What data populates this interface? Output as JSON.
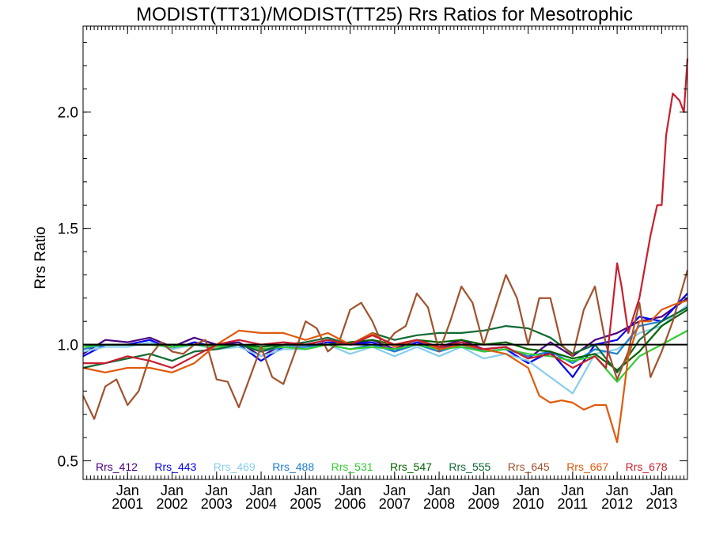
{
  "chart_data": {
    "type": "line",
    "title": "MODIST(TT31)/MODIST(TT25)  Rrs Ratios for Mesotrophic",
    "xlabel": "",
    "ylabel": "Rrs Ratio",
    "xlim": [
      2000.0,
      2013.58
    ],
    "ylim": [
      0.42,
      2.37
    ],
    "yticks": [
      0.5,
      1.0,
      1.5,
      2.0
    ],
    "ytick_labels": [
      "0.5",
      "1.0",
      "1.5",
      "2.0"
    ],
    "xticks": [
      {
        "x": 2001.0,
        "line1": "Jan",
        "line2": "2001"
      },
      {
        "x": 2002.0,
        "line1": "Jan",
        "line2": "2002"
      },
      {
        "x": 2003.0,
        "line1": "Jan",
        "line2": "2003"
      },
      {
        "x": 2004.0,
        "line1": "Jan",
        "line2": "2004"
      },
      {
        "x": 2005.0,
        "line1": "Jan",
        "line2": "2005"
      },
      {
        "x": 2006.0,
        "line1": "Jan",
        "line2": "2006"
      },
      {
        "x": 2007.0,
        "line1": "Jan",
        "line2": "2007"
      },
      {
        "x": 2008.0,
        "line1": "Jan",
        "line2": "2008"
      },
      {
        "x": 2009.0,
        "line1": "Jan",
        "line2": "2009"
      },
      {
        "x": 2010.0,
        "line1": "Jan",
        "line2": "2010"
      },
      {
        "x": 2011.0,
        "line1": "Jan",
        "line2": "2011"
      },
      {
        "x": 2012.0,
        "line1": "Jan",
        "line2": "2012"
      },
      {
        "x": 2013.0,
        "line1": "Jan",
        "line2": "2013"
      }
    ],
    "reference_line": 1.0,
    "grid": false,
    "legend_position": "bottom",
    "series": [
      {
        "name": "Rrs_412",
        "color": "#4b0082",
        "x": [
          2000.0,
          2000.5,
          2001.0,
          2001.5,
          2002.0,
          2002.5,
          2003.0,
          2003.5,
          2004.0,
          2004.5,
          2005.0,
          2005.5,
          2006.0,
          2006.5,
          2007.0,
          2007.5,
          2008.0,
          2008.5,
          2009.0,
          2009.5,
          2010.0,
          2010.5,
          2011.0,
          2011.5,
          2012.0,
          2012.5,
          2013.0,
          2013.58
        ],
        "values": [
          0.96,
          1.02,
          1.01,
          1.03,
          0.99,
          1.03,
          1.0,
          1.01,
          0.95,
          1.0,
          1.0,
          1.02,
          1.0,
          1.02,
          0.98,
          1.02,
          0.99,
          1.02,
          0.98,
          0.99,
          0.94,
          1.01,
          0.95,
          1.02,
          1.05,
          1.1,
          1.12,
          1.2
        ]
      },
      {
        "name": "Rrs_443",
        "color": "#0000ee",
        "x": [
          2000.0,
          2000.5,
          2001.0,
          2001.5,
          2002.0,
          2002.5,
          2003.0,
          2003.5,
          2004.0,
          2004.5,
          2005.0,
          2005.5,
          2006.0,
          2006.5,
          2007.0,
          2007.5,
          2008.0,
          2008.5,
          2009.0,
          2009.5,
          2010.0,
          2010.5,
          2011.0,
          2011.5,
          2012.0,
          2012.5,
          2013.0,
          2013.58
        ],
        "values": [
          0.95,
          1.0,
          1.0,
          1.02,
          0.98,
          1.01,
          0.99,
          1.0,
          0.93,
          0.99,
          0.99,
          1.01,
          1.0,
          1.01,
          0.97,
          1.01,
          0.98,
          1.01,
          0.97,
          0.98,
          0.92,
          0.97,
          0.86,
          1.0,
          1.02,
          1.12,
          1.1,
          1.22
        ]
      },
      {
        "name": "Rrs_469",
        "color": "#87ceeb",
        "x": [
          2000.0,
          2000.5,
          2001.0,
          2001.5,
          2002.0,
          2002.5,
          2003.0,
          2003.5,
          2004.0,
          2004.5,
          2005.0,
          2005.5,
          2006.0,
          2006.5,
          2007.0,
          2007.5,
          2008.0,
          2008.5,
          2009.0,
          2009.5,
          2010.0,
          2010.5,
          2011.0,
          2011.5,
          2012.0,
          2012.5,
          2013.0,
          2013.58
        ],
        "values": [
          0.97,
          0.99,
          0.99,
          1.01,
          0.98,
          1.0,
          0.98,
          0.99,
          0.95,
          0.98,
          0.98,
          1.0,
          0.96,
          0.99,
          0.95,
          0.99,
          0.95,
          0.99,
          0.94,
          0.96,
          0.93,
          0.86,
          0.79,
          0.96,
          0.98,
          1.05,
          1.08,
          1.17
        ]
      },
      {
        "name": "Rrs_488",
        "color": "#1e7fcf",
        "x": [
          2000.0,
          2000.5,
          2001.0,
          2001.5,
          2002.0,
          2002.5,
          2003.0,
          2003.5,
          2004.0,
          2004.5,
          2005.0,
          2005.5,
          2006.0,
          2006.5,
          2007.0,
          2007.5,
          2008.0,
          2008.5,
          2009.0,
          2009.5,
          2010.0,
          2010.5,
          2011.0,
          2011.5,
          2012.0,
          2012.5,
          2013.0,
          2013.58
        ],
        "values": [
          0.98,
          1.0,
          1.0,
          1.0,
          0.99,
          1.0,
          0.99,
          1.0,
          0.97,
          0.99,
          0.99,
          1.0,
          0.98,
          1.0,
          0.97,
          1.0,
          0.97,
          1.0,
          0.97,
          0.98,
          0.95,
          0.97,
          0.92,
          0.98,
          0.96,
          1.08,
          1.1,
          1.16
        ]
      },
      {
        "name": "Rrs_531",
        "color": "#32cd32",
        "x": [
          2000.0,
          2000.5,
          2001.0,
          2001.5,
          2002.0,
          2002.5,
          2003.0,
          2003.5,
          2004.0,
          2004.5,
          2005.0,
          2005.5,
          2006.0,
          2006.5,
          2007.0,
          2007.5,
          2008.0,
          2008.5,
          2009.0,
          2009.5,
          2010.0,
          2010.5,
          2011.0,
          2011.5,
          2012.0,
          2012.5,
          2013.0,
          2013.58
        ],
        "values": [
          0.99,
          1.0,
          1.0,
          1.0,
          0.99,
          1.0,
          0.99,
          1.0,
          0.98,
          0.99,
          0.98,
          1.0,
          0.98,
          0.99,
          0.98,
          1.0,
          0.98,
          0.99,
          0.97,
          0.98,
          0.96,
          0.95,
          0.93,
          0.95,
          0.84,
          0.95,
          1.0,
          1.06
        ]
      },
      {
        "name": "Rrs_547",
        "color": "#006400",
        "x": [
          2000.0,
          2000.5,
          2001.0,
          2001.5,
          2002.0,
          2002.5,
          2003.0,
          2003.5,
          2004.0,
          2004.5,
          2005.0,
          2005.5,
          2006.0,
          2006.5,
          2007.0,
          2007.5,
          2008.0,
          2008.5,
          2009.0,
          2009.5,
          2010.0,
          2010.5,
          2011.0,
          2011.5,
          2012.0,
          2012.5,
          2013.0,
          2013.58
        ],
        "values": [
          1.0,
          1.0,
          1.0,
          1.0,
          1.0,
          1.0,
          1.0,
          1.0,
          0.99,
          1.0,
          1.0,
          1.0,
          1.01,
          1.02,
          1.0,
          1.02,
          1.01,
          1.02,
          1.0,
          1.01,
          0.98,
          0.97,
          0.94,
          0.96,
          0.89,
          0.97,
          1.08,
          1.15
        ]
      },
      {
        "name": "Rrs_555",
        "color": "#0e6b33",
        "x": [
          2000.0,
          2000.5,
          2001.0,
          2001.5,
          2002.0,
          2002.5,
          2003.0,
          2003.5,
          2004.0,
          2004.5,
          2005.0,
          2005.5,
          2006.0,
          2006.5,
          2007.0,
          2007.5,
          2008.0,
          2008.5,
          2009.0,
          2009.5,
          2010.0,
          2010.5,
          2011.0,
          2011.5,
          2012.0,
          2012.5,
          2013.0,
          2013.58
        ],
        "values": [
          0.9,
          0.92,
          0.94,
          0.96,
          0.93,
          0.97,
          0.98,
          1.0,
          0.97,
          1.0,
          1.01,
          1.03,
          1.0,
          1.05,
          1.02,
          1.04,
          1.05,
          1.05,
          1.06,
          1.08,
          1.07,
          1.03,
          0.96,
          1.0,
          0.88,
          1.02,
          1.1,
          1.16
        ]
      },
      {
        "name": "Rrs_645",
        "color": "#a0522d",
        "x": [
          2000.0,
          2000.25,
          2000.5,
          2000.75,
          2001.0,
          2001.25,
          2001.5,
          2001.75,
          2002.0,
          2002.25,
          2002.5,
          2002.75,
          2003.0,
          2003.25,
          2003.5,
          2003.75,
          2004.0,
          2004.25,
          2004.5,
          2004.75,
          2005.0,
          2005.25,
          2005.5,
          2005.75,
          2006.0,
          2006.25,
          2006.5,
          2006.75,
          2007.0,
          2007.25,
          2007.5,
          2007.75,
          2008.0,
          2008.25,
          2008.5,
          2008.75,
          2009.0,
          2009.25,
          2009.5,
          2009.75,
          2010.0,
          2010.25,
          2010.5,
          2010.75,
          2011.0,
          2011.25,
          2011.5,
          2011.75,
          2012.0,
          2012.25,
          2012.5,
          2012.75,
          2013.0,
          2013.25,
          2013.58
        ],
        "values": [
          0.78,
          0.68,
          0.82,
          0.85,
          0.74,
          0.8,
          0.95,
          1.01,
          0.97,
          0.96,
          1.0,
          1.02,
          0.85,
          0.84,
          0.73,
          0.86,
          0.99,
          0.86,
          0.83,
          0.96,
          1.1,
          1.07,
          0.97,
          1.01,
          1.15,
          1.18,
          1.1,
          0.99,
          1.05,
          1.08,
          1.22,
          1.16,
          0.97,
          1.1,
          1.25,
          1.18,
          1.0,
          1.15,
          1.3,
          1.2,
          1.0,
          1.2,
          1.2,
          1.0,
          0.95,
          1.15,
          1.25,
          1.0,
          0.85,
          0.97,
          1.18,
          0.86,
          0.97,
          1.1,
          1.32
        ]
      },
      {
        "name": "Rrs_667",
        "color": "#e05a0c",
        "x": [
          2000.0,
          2000.5,
          2001.0,
          2001.5,
          2002.0,
          2002.5,
          2003.0,
          2003.5,
          2004.0,
          2004.5,
          2005.0,
          2005.5,
          2006.0,
          2006.5,
          2007.0,
          2007.5,
          2008.0,
          2008.5,
          2009.0,
          2009.5,
          2010.0,
          2010.25,
          2010.5,
          2010.75,
          2011.0,
          2011.25,
          2011.5,
          2011.75,
          2012.0,
          2012.1,
          2012.25,
          2012.5,
          2012.75,
          2013.0,
          2013.25,
          2013.58
        ],
        "values": [
          0.9,
          0.88,
          0.9,
          0.9,
          0.88,
          0.92,
          1.0,
          1.06,
          1.05,
          1.05,
          1.02,
          1.05,
          1.0,
          1.05,
          0.99,
          1.02,
          0.98,
          1.0,
          0.98,
          0.96,
          0.9,
          0.78,
          0.75,
          0.76,
          0.75,
          0.72,
          0.74,
          0.74,
          0.58,
          0.72,
          0.95,
          1.1,
          1.1,
          1.15,
          1.17,
          1.19
        ]
      },
      {
        "name": "Rrs_678",
        "color": "#c81e2d",
        "x": [
          2000.0,
          2000.5,
          2001.0,
          2001.5,
          2002.0,
          2002.5,
          2003.0,
          2003.5,
          2004.0,
          2004.5,
          2005.0,
          2005.5,
          2006.0,
          2006.5,
          2007.0,
          2007.5,
          2008.0,
          2008.5,
          2009.0,
          2009.5,
          2010.0,
          2010.5,
          2011.0,
          2011.5,
          2011.75,
          2012.0,
          2012.1,
          2012.25,
          2012.5,
          2012.75,
          2012.9,
          2013.0,
          2013.1,
          2013.25,
          2013.4,
          2013.5,
          2013.58
        ],
        "values": [
          0.92,
          0.92,
          0.95,
          0.93,
          0.9,
          0.95,
          1.0,
          1.02,
          1.0,
          1.01,
          1.0,
          1.02,
          1.0,
          1.04,
          1.0,
          1.02,
          0.99,
          1.01,
          0.98,
          0.99,
          0.94,
          0.96,
          0.9,
          0.95,
          0.9,
          1.35,
          1.25,
          1.05,
          1.2,
          1.47,
          1.6,
          1.6,
          1.9,
          2.08,
          2.05,
          2.0,
          2.23
        ]
      }
    ]
  }
}
